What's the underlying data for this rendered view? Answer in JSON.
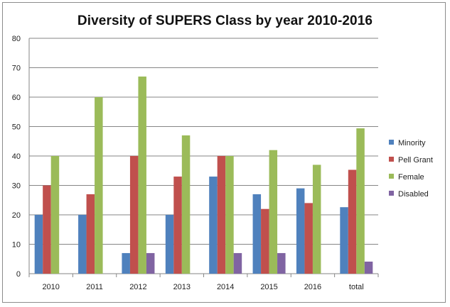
{
  "chart_data": {
    "type": "bar",
    "title": "Diversity of SUPERS Class by year 2010-2016",
    "categories": [
      "2010",
      "2011",
      "2012",
      "2013",
      "2014",
      "2015",
      "2016",
      "total"
    ],
    "series": [
      {
        "name": "Minority",
        "color": "#4f81bd",
        "values": [
          20,
          20,
          7,
          20,
          33,
          27,
          29,
          22.6
        ]
      },
      {
        "name": "Pell Grant",
        "color": "#c0504d",
        "values": [
          30,
          27,
          40,
          33,
          40,
          22,
          24,
          35.3
        ]
      },
      {
        "name": "Female",
        "color": "#9bbb59",
        "values": [
          40,
          60,
          67,
          47,
          40,
          42,
          37,
          49.4
        ]
      },
      {
        "name": "Disabled",
        "color": "#8064a2",
        "values": [
          0,
          0,
          7,
          0,
          7,
          7,
          0,
          4.1
        ]
      }
    ],
    "ylim": [
      0,
      80
    ],
    "yticks": [
      "0",
      "10",
      "20",
      "30",
      "40",
      "50",
      "60",
      "70",
      "80"
    ],
    "xlabel": "",
    "ylabel": "",
    "grid": true,
    "legend": "right"
  }
}
